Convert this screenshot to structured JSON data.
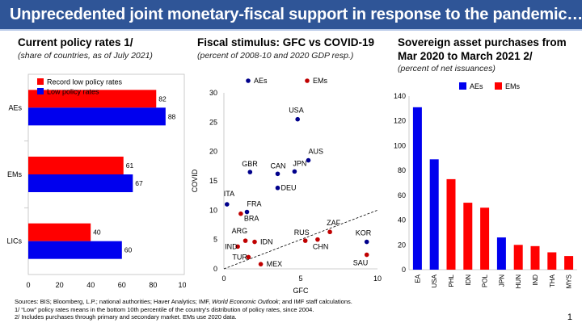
{
  "header": {
    "title": "Unprecedented joint monetary-fiscal support in response to the pandemic…"
  },
  "colors": {
    "red": "#ff0000",
    "blue": "#0000ee",
    "navy": "#00008b",
    "brown": "#c00000",
    "banner": "#2f5597"
  },
  "panel1": {
    "title": "Current policy rates 1/",
    "subtitle": "(share of countries, as of July 2021)"
  },
  "panel2": {
    "title": "Fiscal stimulus: GFC vs COVID-19",
    "subtitle": "(percent of 2008-10 and 2020 GDP resp.)"
  },
  "panel3": {
    "title_line1": "Sovereign asset purchases from",
    "title_line2": "Mar 2020 to March 2021 2/",
    "subtitle": "(percent of net issuances)"
  },
  "footnotes": {
    "sources_prefix": "Sources: BIS; Bloomberg, L.P.; national authorities; Haver Analytics; IMF, ",
    "sources_italic": "World Economic Outlook",
    "sources_suffix": "; and IMF staff calculations.",
    "note1": "1/ “Low” policy rates means in the bottom 10th percentile of the country's distribution of policy rates, since 2004.",
    "note2": "2/ Includes purchases through primary and secondary market. EMs use 2020 data."
  },
  "page_number": "1",
  "chart_data": [
    {
      "type": "bar",
      "orientation": "horizontal",
      "categories": [
        "AEs",
        "EMs",
        "LICs"
      ],
      "series": [
        {
          "name": "Record low policy rates",
          "color": "#ff0000",
          "values": [
            82,
            61,
            40
          ]
        },
        {
          "name": "Low policy rates",
          "color": "#0000ee",
          "values": [
            88,
            67,
            60
          ]
        }
      ],
      "xlim": [
        0,
        100
      ],
      "xticks": [
        0,
        20,
        40,
        60,
        80,
        100
      ],
      "legend": "top-left"
    },
    {
      "type": "scatter",
      "xlabel": "GFC",
      "ylabel": "COVID",
      "xlim": [
        0,
        10
      ],
      "ylim": [
        0,
        30
      ],
      "xticks": [
        0,
        5,
        10
      ],
      "yticks": [
        0,
        5,
        10,
        15,
        20,
        25,
        30
      ],
      "reference_line": "45-degree dashed",
      "legend": [
        "AEs",
        "EMs"
      ],
      "points": [
        {
          "label": "USA",
          "group": "AEs",
          "x": 4.8,
          "y": 25.5
        },
        {
          "label": "AUS",
          "group": "AEs",
          "x": 5.5,
          "y": 18.5
        },
        {
          "label": "GBR",
          "group": "AEs",
          "x": 1.7,
          "y": 16.5
        },
        {
          "label": "CAN",
          "group": "AEs",
          "x": 3.5,
          "y": 16.2
        },
        {
          "label": "JPN",
          "group": "AEs",
          "x": 4.6,
          "y": 16.6
        },
        {
          "label": "DEU",
          "group": "AEs",
          "x": 3.5,
          "y": 13.8
        },
        {
          "label": "ITA",
          "group": "AEs",
          "x": 0.2,
          "y": 11.0
        },
        {
          "label": "FRA",
          "group": "AEs",
          "x": 1.5,
          "y": 9.7
        },
        {
          "label": "KOR",
          "group": "AEs",
          "x": 9.3,
          "y": 4.6
        },
        {
          "label": "BRA",
          "group": "EMs",
          "x": 1.1,
          "y": 9.4
        },
        {
          "label": "ARG",
          "group": "EMs",
          "x": 1.4,
          "y": 4.8
        },
        {
          "label": "IND",
          "group": "EMs",
          "x": 0.9,
          "y": 3.8
        },
        {
          "label": "IDN",
          "group": "EMs",
          "x": 2.0,
          "y": 4.6
        },
        {
          "label": "TUR",
          "group": "EMs",
          "x": 1.6,
          "y": 2.0
        },
        {
          "label": "MEX",
          "group": "EMs",
          "x": 2.4,
          "y": 0.8
        },
        {
          "label": "RUS",
          "group": "EMs",
          "x": 5.3,
          "y": 4.8
        },
        {
          "label": "CHN",
          "group": "EMs",
          "x": 6.1,
          "y": 5.0
        },
        {
          "label": "ZAF",
          "group": "EMs",
          "x": 6.9,
          "y": 6.3
        },
        {
          "label": "SAU",
          "group": "EMs",
          "x": 9.3,
          "y": 2.4
        }
      ]
    },
    {
      "type": "bar",
      "orientation": "vertical",
      "categories": [
        "EA",
        "USA",
        "PHL",
        "IDN",
        "POL",
        "JPN",
        "HUN",
        "IND",
        "THA",
        "MYS"
      ],
      "values": [
        131,
        89,
        73,
        54,
        50,
        26,
        20,
        19,
        14,
        11
      ],
      "groups": [
        "AEs",
        "AEs",
        "EMs",
        "EMs",
        "EMs",
        "AEs",
        "EMs",
        "EMs",
        "EMs",
        "EMs"
      ],
      "ylim": [
        0,
        140
      ],
      "yticks": [
        0,
        20,
        40,
        60,
        80,
        100,
        120,
        140
      ],
      "legend": [
        "AEs",
        "EMs"
      ]
    }
  ]
}
